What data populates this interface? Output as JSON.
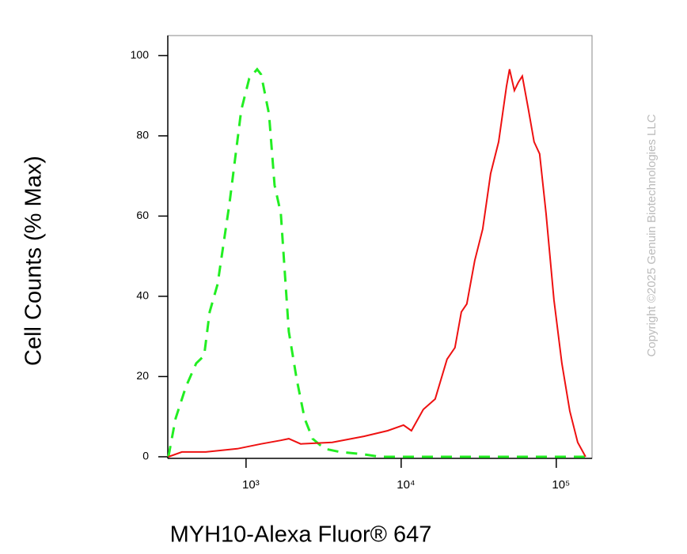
{
  "chart_data": {
    "type": "line",
    "xlabel": "MYH10-Alexa Fluor® 647",
    "ylabel": "Cell Counts (% Max)",
    "watermark": "Copyright ©2025 Genuin Biotechnologies LLC",
    "xscale": "log",
    "xlim": [
      313,
      170000
    ],
    "ylim": [
      -0.4,
      105
    ],
    "xticks": [
      {
        "value": 1000,
        "label": "10³"
      },
      {
        "value": 10000,
        "label": "10⁴"
      },
      {
        "value": 100000,
        "label": "10⁵"
      }
    ],
    "yticks": [
      0,
      20,
      40,
      60,
      80,
      100
    ],
    "grid": false,
    "series": [
      {
        "color": "#22ee22",
        "linestyle": "dashed",
        "x": [
          316,
          351,
          409,
          477,
          537,
          583,
          655,
          782,
          931,
          1048,
          1179,
          1250,
          1406,
          1527,
          1676,
          1886,
          2122,
          2387,
          2686,
          3201,
          4046,
          5754,
          7278,
          11650,
          154500
        ],
        "values": [
          0,
          9.5,
          17.4,
          23.3,
          25.2,
          36.1,
          43,
          63.1,
          86.4,
          94.3,
          96.6,
          95.3,
          85.4,
          67.7,
          60.7,
          31.2,
          19.3,
          9.5,
          4.5,
          2,
          1.2,
          0.6,
          0,
          0,
          0
        ]
      },
      {
        "color": "#ee1111",
        "linestyle": "solid",
        "x": [
          316,
          386,
          550,
          879,
          1250,
          1676,
          1886,
          2250,
          3597,
          5754,
          8185,
          10350,
          11650,
          13890,
          16560,
          19760,
          22230,
          24430,
          26500,
          29800,
          33560,
          37760,
          42480,
          47760,
          50000,
          53700,
          56900,
          60400,
          66250,
          71900,
          78100,
          85900,
          96600,
          108700,
          122200,
          137400,
          154500
        ],
        "values": [
          0,
          1.2,
          1.2,
          2,
          3.2,
          4.1,
          4.5,
          3.2,
          3.6,
          5.1,
          6.5,
          7.9,
          6.5,
          11.8,
          14.4,
          24.3,
          27.2,
          36.1,
          38.1,
          48.9,
          56.8,
          70.6,
          78.5,
          92.3,
          96.6,
          91.3,
          93.3,
          94.9,
          86.4,
          78.5,
          75.5,
          60.7,
          39.1,
          23.3,
          11.4,
          3.6,
          0
        ]
      }
    ]
  }
}
